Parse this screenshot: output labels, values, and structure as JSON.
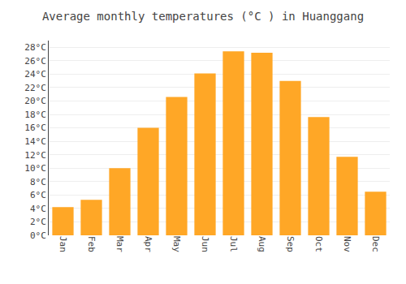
{
  "chart_data": {
    "type": "bar",
    "title": "Average monthly temperatures (°C ) in Huanggang",
    "categories": [
      "Jan",
      "Feb",
      "Mar",
      "Apr",
      "May",
      "Jun",
      "Jul",
      "Aug",
      "Sep",
      "Oct",
      "Nov",
      "Dec"
    ],
    "values": [
      4.2,
      5.3,
      10.0,
      16.0,
      20.6,
      24.1,
      27.4,
      27.2,
      23.0,
      17.6,
      11.7,
      6.5
    ],
    "color": "#FFA726",
    "ylim": [
      0,
      29
    ],
    "yticks": [
      {
        "value": 0,
        "label": "0°C"
      },
      {
        "value": 2,
        "label": "2°C"
      },
      {
        "value": 4,
        "label": "4°C"
      },
      {
        "value": 6,
        "label": "6°C"
      },
      {
        "value": 8,
        "label": "8°C"
      },
      {
        "value": 10,
        "label": "10°C"
      },
      {
        "value": 12,
        "label": "12°C"
      },
      {
        "value": 14,
        "label": "14°C"
      },
      {
        "value": 16,
        "label": "16°C"
      },
      {
        "value": 18,
        "label": "18°C"
      },
      {
        "value": 20,
        "label": "20°C"
      },
      {
        "value": 22,
        "label": "22°C"
      },
      {
        "value": 24,
        "label": "24°C"
      },
      {
        "value": 26,
        "label": "26°C"
      },
      {
        "value": 28,
        "label": "28°C"
      }
    ],
    "grid": true
  }
}
